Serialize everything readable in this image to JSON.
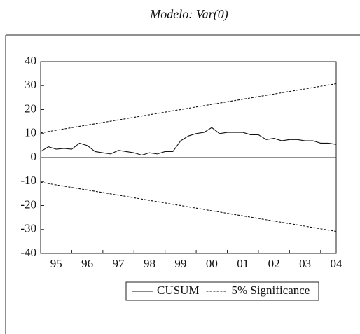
{
  "chart_data": {
    "type": "line",
    "title": "Modelo: Var(0)",
    "xlim": [
      1995,
      2004.5
    ],
    "xticks": [
      {
        "value": 1995,
        "label": "95"
      },
      {
        "value": 1996,
        "label": "96"
      },
      {
        "value": 1997,
        "label": "97"
      },
      {
        "value": 1998,
        "label": "98"
      },
      {
        "value": 1999,
        "label": "99"
      },
      {
        "value": 2000,
        "label": "00"
      },
      {
        "value": 2001,
        "label": "01"
      },
      {
        "value": 2002,
        "label": "02"
      },
      {
        "value": 2003,
        "label": "03"
      },
      {
        "value": 2004,
        "label": "04"
      }
    ],
    "ylim": [
      -40,
      40
    ],
    "yticks": [
      -40,
      -30,
      -20,
      -10,
      0,
      10,
      20,
      30,
      40
    ],
    "series": [
      {
        "name": "CUSUM",
        "color": "#111111",
        "dash": false,
        "x": [
          1995,
          1995.25,
          1995.5,
          1995.75,
          1996,
          1996.25,
          1996.5,
          1996.75,
          1997,
          1997.25,
          1997.5,
          1997.75,
          1998,
          1998.25,
          1998.5,
          1998.75,
          1999,
          1999.25,
          1999.5,
          1999.75,
          2000,
          2000.25,
          2000.5,
          2000.75,
          2001,
          2001.25,
          2001.5,
          2001.75,
          2002,
          2002.25,
          2002.5,
          2002.75,
          2003,
          2003.25,
          2003.5,
          2003.75,
          2004,
          2004.25,
          2004.5
        ],
        "values": [
          2.5,
          4.5,
          3.5,
          3.8,
          3.5,
          6,
          5,
          2.5,
          2,
          1.5,
          3,
          2.5,
          2,
          1,
          2,
          1.5,
          2.5,
          2.5,
          7,
          9,
          10,
          10.5,
          12.5,
          10,
          10.5,
          10.5,
          10.5,
          9.5,
          9.5,
          7.5,
          8,
          7,
          7.5,
          7.5,
          7,
          7,
          6,
          6,
          5.5
        ]
      },
      {
        "name": "5% Significance",
        "color": "#111111",
        "dash": true,
        "x": [
          1995,
          2004.5
        ],
        "values": [
          10.3,
          30.8
        ],
        "lower": [
          -10.3,
          -30.8
        ]
      }
    ]
  }
}
